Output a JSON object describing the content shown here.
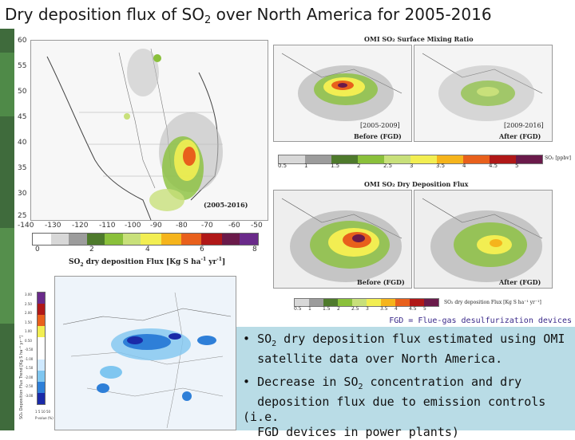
{
  "title": {
    "main": "Dry deposition flux of SO",
    "sub": "2",
    "rest": " over North America for 2005-2016"
  },
  "left_map": {
    "y_ticks": [
      "60",
      "55",
      "50",
      "45",
      "40",
      "35",
      "30",
      "25"
    ],
    "x_ticks": [
      "-140",
      "-130",
      "-120",
      "-110",
      "-100",
      "-90",
      "-80",
      "-70",
      "-60",
      "-50"
    ],
    "period_label": "(2005-2016)",
    "colorbar_ticks": [
      "0",
      "2",
      "4",
      "6",
      "8"
    ],
    "colorbar_label_a": "SO",
    "colorbar_label_sub": "2",
    "colorbar_label_b": " dry deposition Flux [Kg S ha",
    "colorbar_label_sup1": "-1",
    "colorbar_label_c": " yr",
    "colorbar_label_sup2": "-1",
    "colorbar_label_d": "]"
  },
  "omi_mixing": {
    "header": "OMI SO₂ Surface Mixing Ratio",
    "left_period": "[2005-2009]",
    "right_period": "[2009-2016]",
    "left_caption": "Before (FGD)",
    "right_caption": "After (FGD)",
    "colorbar_ticks": [
      "0.5",
      "1",
      "1.5",
      "2",
      "2.5",
      "3",
      "3.5",
      "4",
      "4.5",
      "5"
    ],
    "unit": "SO₂ [ppbv]"
  },
  "omi_flux": {
    "header": "OMI SO₂ Dry Deposition Flux",
    "left_caption": "Before (FGD)",
    "right_caption": "After (FGD)",
    "colorbar_ticks": [
      "0.5",
      "1",
      "1.5",
      "2",
      "2.5",
      "3",
      "3.5",
      "4",
      "4.5",
      "5"
    ],
    "unit": "SO₂ dry deposition Flux [Kg S ha⁻¹ yr⁻¹]"
  },
  "diff_map": {
    "colorbar_ticks": [
      "3.00",
      "2.50",
      "2.00",
      "1.50",
      "1.00",
      "0.50",
      "-0.50",
      "-1.00",
      "-1.50",
      "-2.00",
      "-2.50",
      "-3.00"
    ],
    "colorbar_title": "SO₂ Deposition Flux Trend [Kg S ha⁻¹ yr⁻¹]",
    "pvalue_label": "P-value (%)",
    "pvalue_ticks": "1  5  10  50"
  },
  "fgd_note": "FGD = Flue-gas desulfurization devices",
  "bullet1": {
    "dot": "•",
    "a": "SO",
    "sub": "2",
    "b": " dry deposition flux estimated using OMI",
    "c": "satellite data over North America."
  },
  "bullet2": {
    "dot": "•",
    "a": "Decrease in SO",
    "sub": "2",
    "b": " concentration and dry",
    "c": "deposition flux due to emission controls (i.e.",
    "d": "FGD devices in power plants)"
  },
  "colors": {
    "sidebar": "#3f6b3c",
    "bullet_box": "#b9dce6",
    "note_text": "#3b2a8a",
    "colorscale": [
      "#ffffff",
      "#d8d8d8",
      "#9c9c9c",
      "#4e7a2c",
      "#8ac03b",
      "#c8e07a",
      "#f2ee52",
      "#f5b41c",
      "#e8601c",
      "#b01818",
      "#6a1a4a",
      "#6a2a8a"
    ]
  },
  "icons": {
    "map_marker": "flux-hotspot"
  }
}
